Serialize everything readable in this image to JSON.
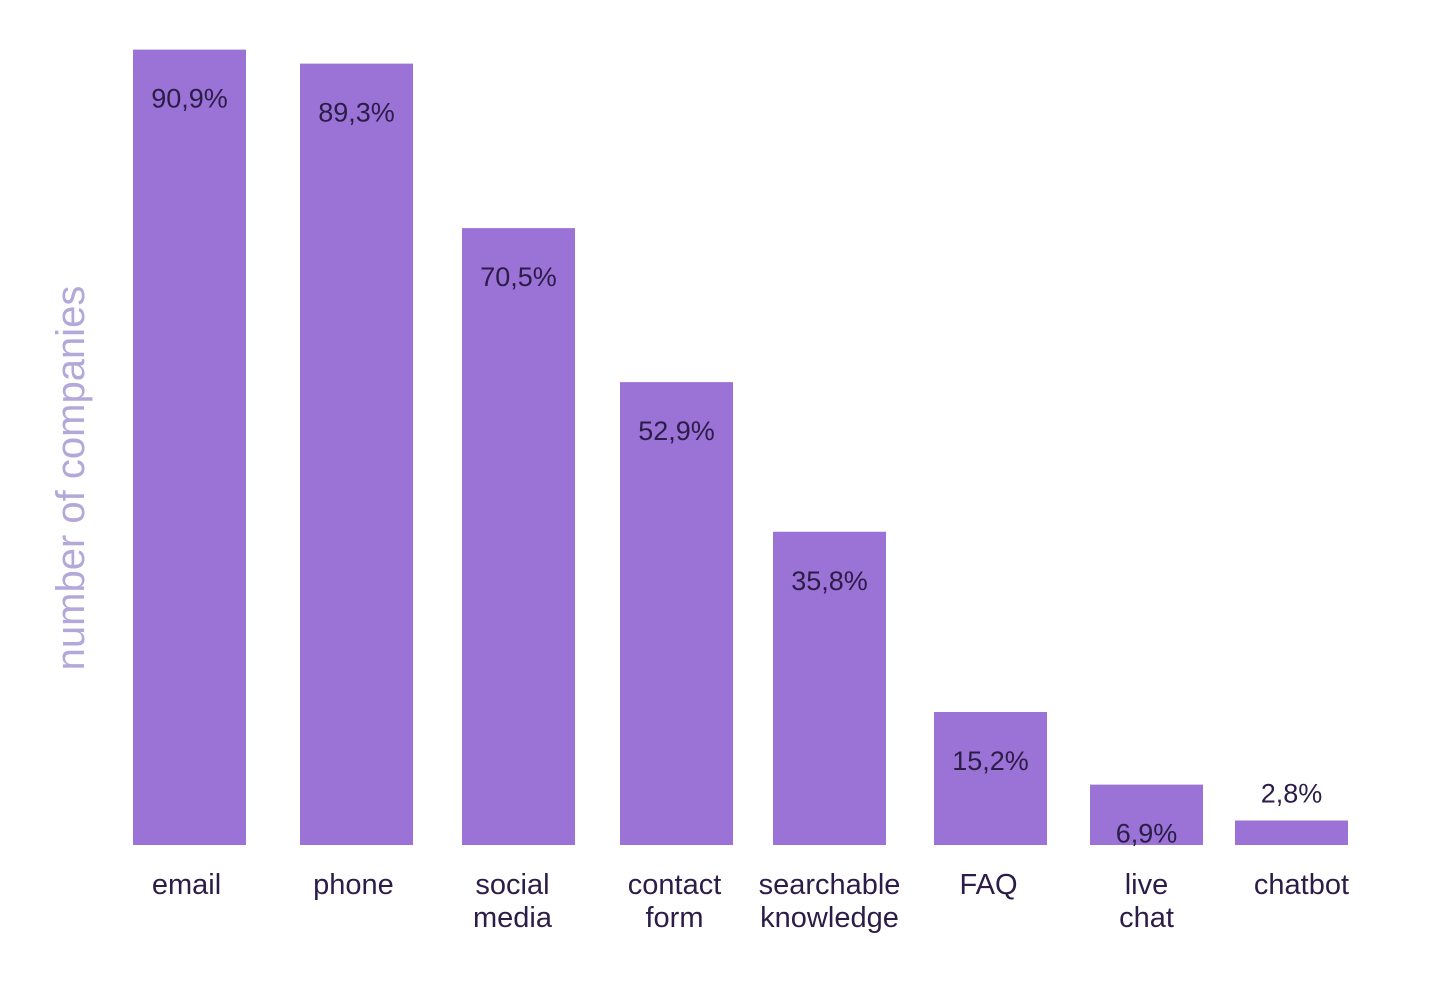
{
  "chart_data": {
    "type": "bar",
    "ylabel": "number of companies",
    "categories": [
      [
        "email"
      ],
      [
        "phone"
      ],
      [
        "social",
        "media"
      ],
      [
        "contact",
        "form"
      ],
      [
        "searchable",
        "knowledge"
      ],
      [
        "FAQ"
      ],
      [
        "live",
        "chat"
      ],
      [
        "chatbot"
      ]
    ],
    "values": [
      90.9,
      89.3,
      70.5,
      52.9,
      35.8,
      15.2,
      6.9,
      2.8
    ],
    "value_labels": [
      "90,9%",
      "89,3%",
      "70,5%",
      "52,9%",
      "35,8%",
      "15,2%",
      "6,9%",
      "2,8%"
    ],
    "ylim": [
      0,
      100
    ],
    "grid": false,
    "legend": "none",
    "colors": {
      "bar": "#9b72d6",
      "value_text": "#2b1d47",
      "category_text": "#2b1d47",
      "ylabel_text": "#b3a8d9"
    }
  }
}
